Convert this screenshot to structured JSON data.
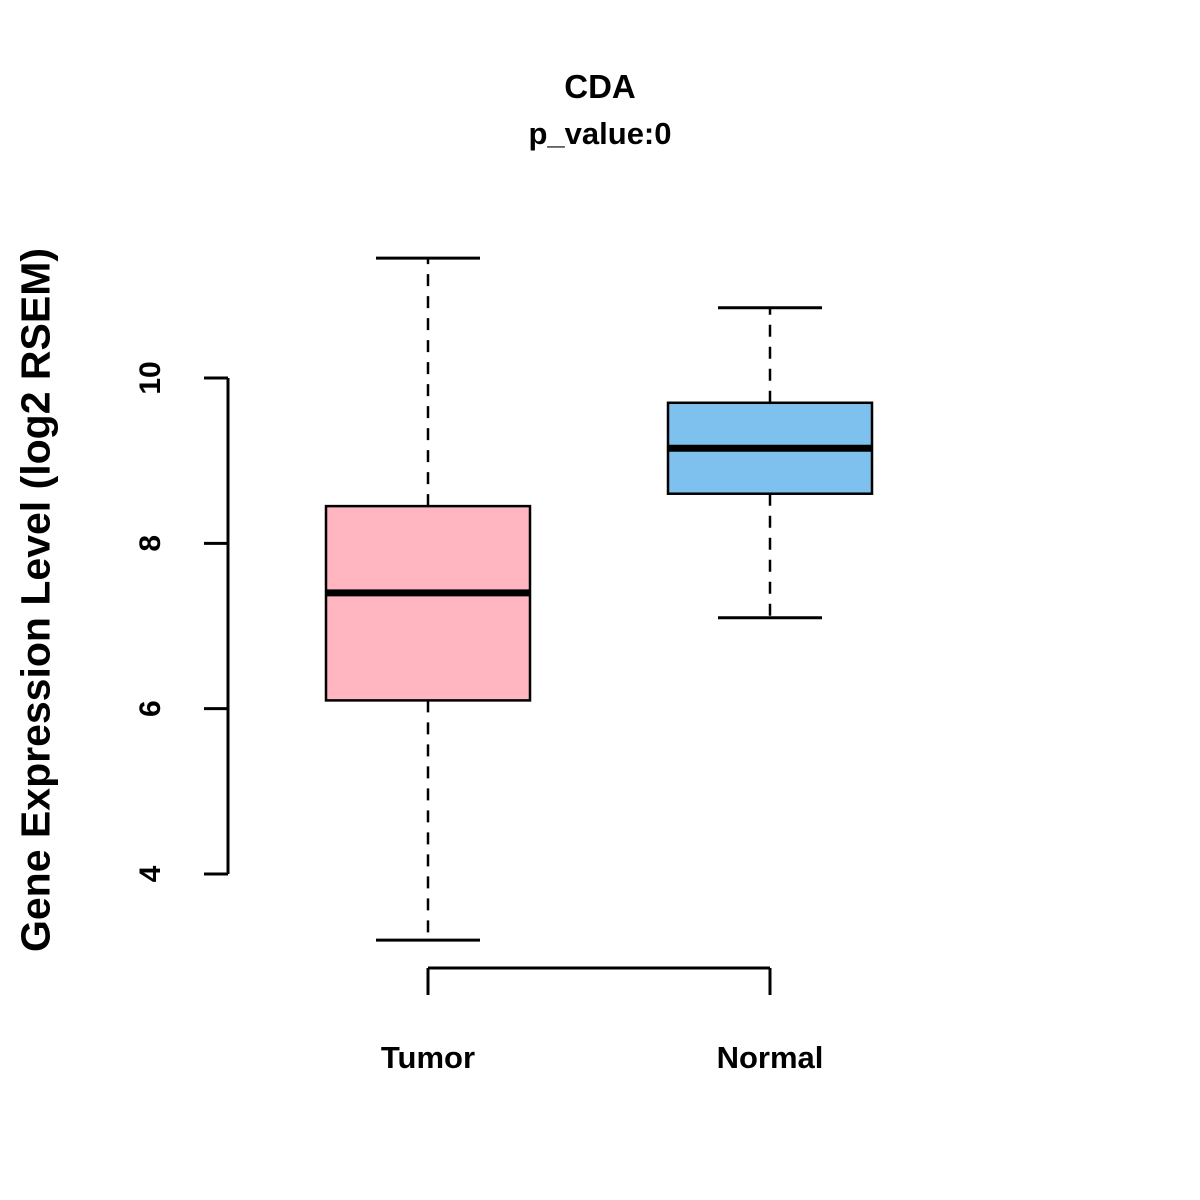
{
  "title": "CDA",
  "subtitle": "p_value:0",
  "ylabel": "Gene Expression Level (log2 RSEM)",
  "chart_data": {
    "type": "boxplot",
    "title": "CDA",
    "subtitle": "p_value:0",
    "ylabel": "Gene Expression Level (log2 RSEM)",
    "xlabel": "",
    "categories": [
      "Tumor",
      "Normal"
    ],
    "yticks": [
      4,
      6,
      8,
      10
    ],
    "ylim": [
      3.0,
      11.6
    ],
    "grid": false,
    "legend": "none",
    "series": [
      {
        "name": "Tumor",
        "color": "#FFB6C1",
        "whisker_low": 3.2,
        "q1": 6.1,
        "median": 7.4,
        "q3": 8.45,
        "whisker_high": 11.45
      },
      {
        "name": "Normal",
        "color": "#7EC0EE",
        "whisker_low": 7.1,
        "q1": 8.6,
        "median": 9.15,
        "q3": 9.7,
        "whisker_high": 10.85
      }
    ]
  }
}
